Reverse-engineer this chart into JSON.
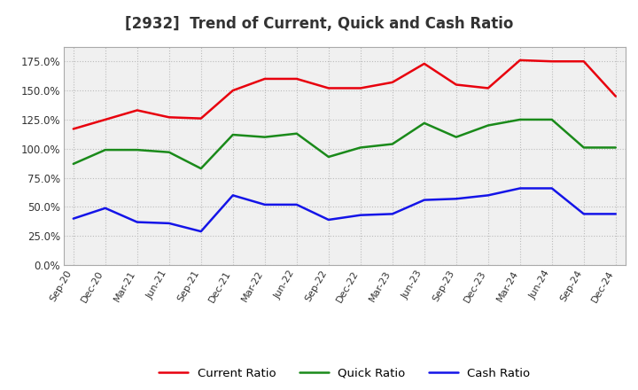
{
  "title": "[2932]  Trend of Current, Quick and Cash Ratio",
  "x_labels": [
    "Sep-20",
    "Dec-20",
    "Mar-21",
    "Jun-21",
    "Sep-21",
    "Dec-21",
    "Mar-22",
    "Jun-22",
    "Sep-22",
    "Dec-22",
    "Mar-23",
    "Jun-23",
    "Sep-23",
    "Dec-23",
    "Mar-24",
    "Jun-24",
    "Sep-24",
    "Dec-24"
  ],
  "current_ratio": [
    1.17,
    1.25,
    1.33,
    1.27,
    1.26,
    1.5,
    1.6,
    1.6,
    1.52,
    1.52,
    1.57,
    1.73,
    1.55,
    1.52,
    1.76,
    1.75,
    1.75,
    1.45
  ],
  "quick_ratio": [
    0.87,
    0.99,
    0.99,
    0.97,
    0.83,
    1.12,
    1.1,
    1.13,
    0.93,
    1.01,
    1.04,
    1.22,
    1.1,
    1.2,
    1.25,
    1.25,
    1.01,
    1.01
  ],
  "cash_ratio": [
    0.4,
    0.49,
    0.37,
    0.36,
    0.29,
    0.6,
    0.52,
    0.52,
    0.39,
    0.43,
    0.44,
    0.56,
    0.57,
    0.6,
    0.66,
    0.66,
    0.44,
    0.44
  ],
  "current_color": "#e8000d",
  "quick_color": "#1a8a1a",
  "cash_color": "#1414e8",
  "ylim": [
    0.0,
    1.875
  ],
  "yticks": [
    0.0,
    0.25,
    0.5,
    0.75,
    1.0,
    1.25,
    1.5,
    1.75
  ],
  "ytick_labels": [
    "0.0%",
    "25.0%",
    "50.0%",
    "75.0%",
    "100.0%",
    "125.0%",
    "150.0%",
    "175.0%"
  ],
  "bg_outer": "#ffffff",
  "bg_plot": "#f0f0f0",
  "grid_color": "#bbbbbb",
  "title_color": "#333333",
  "tick_color": "#333333",
  "legend_labels": [
    "Current Ratio",
    "Quick Ratio",
    "Cash Ratio"
  ],
  "linewidth": 1.8
}
